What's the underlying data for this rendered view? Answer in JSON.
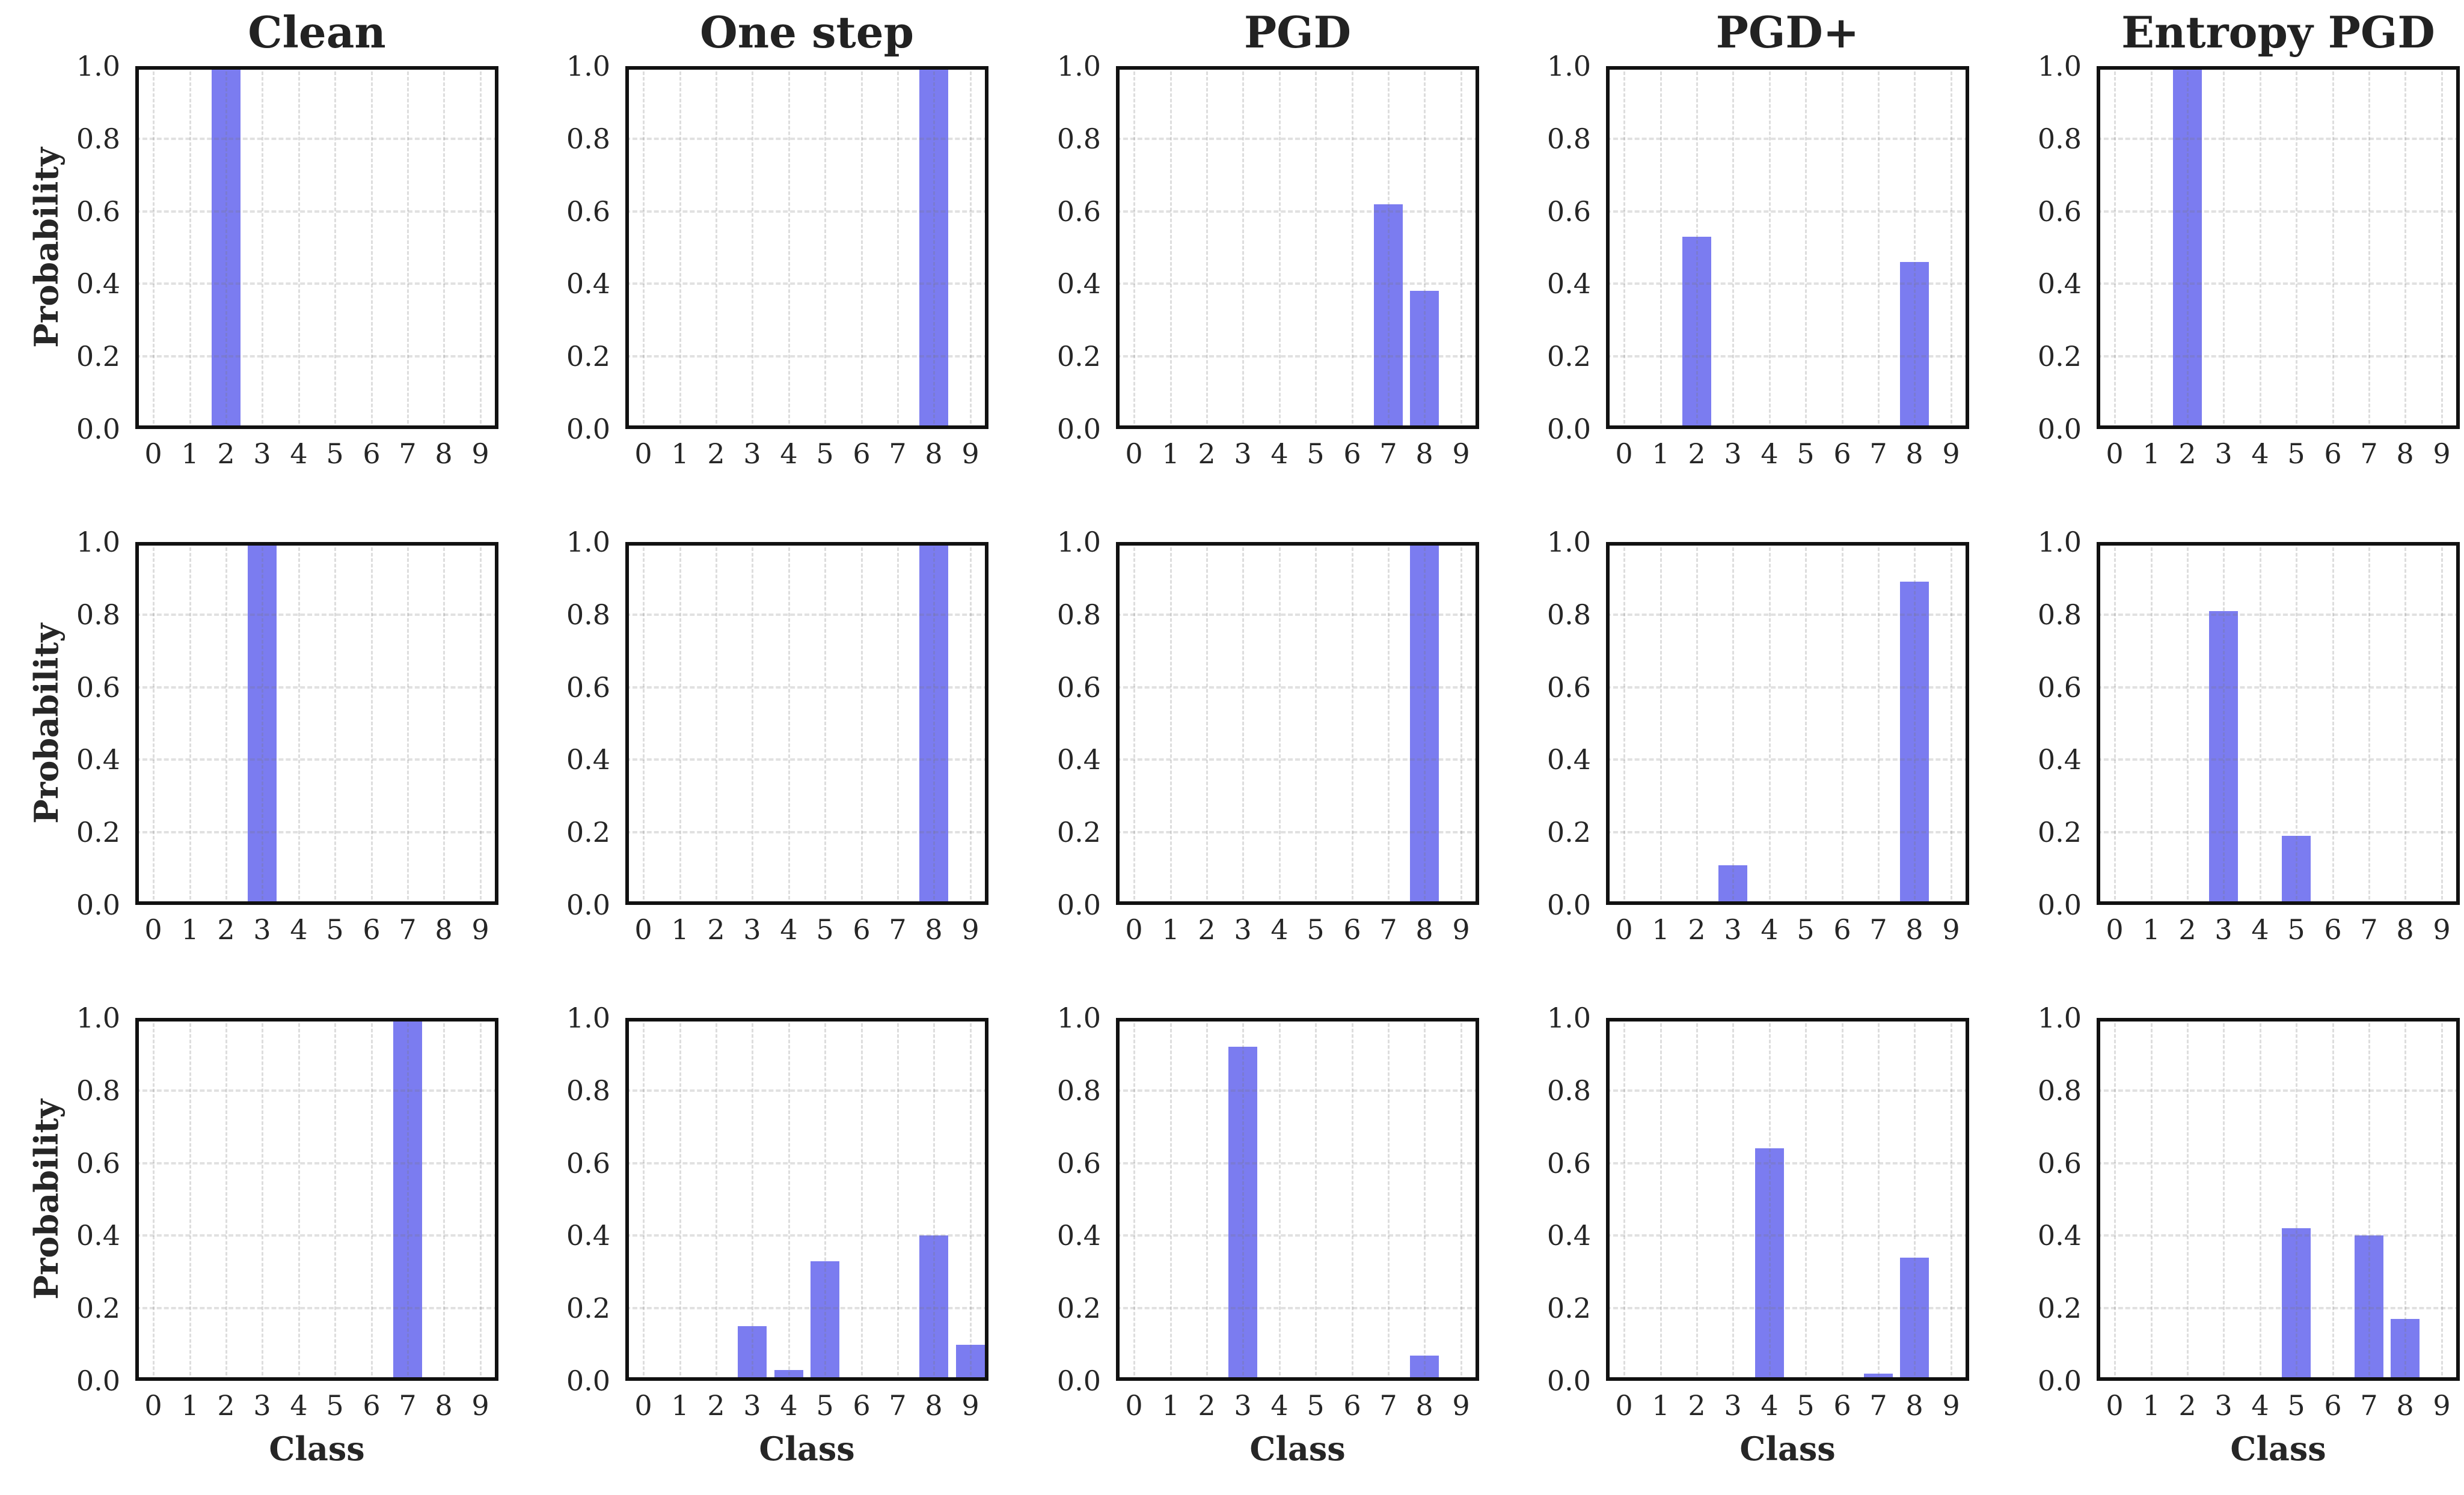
{
  "figure": {
    "background_color": "#ffffff",
    "bar_color": "#7b7cf0",
    "spine_color": "#111111",
    "grid_color": "#dddddd",
    "text_color": "#262626",
    "ylabel": "Probability",
    "xlabel": "Class"
  },
  "chart_data": {
    "type": "bar",
    "layout": "3 rows x 5 columns of subplots, shared style",
    "title": "",
    "column_titles": [
      "Clean",
      "One step",
      "PGD",
      "PGD+",
      "Entropy PGD"
    ],
    "xlabel": "Class",
    "ylabel": "Probability",
    "categories": [
      "0",
      "1",
      "2",
      "3",
      "4",
      "5",
      "6",
      "7",
      "8",
      "9"
    ],
    "ytick_labels": [
      "0.0",
      "0.2",
      "0.4",
      "0.6",
      "0.8",
      "1.0"
    ],
    "ylim": [
      0.0,
      1.0
    ],
    "grid": true,
    "legend": false,
    "rows": [
      {
        "subplots": [
          {
            "column": "Clean",
            "values": [
              0,
              0,
              1.0,
              0,
              0,
              0,
              0,
              0,
              0,
              0
            ]
          },
          {
            "column": "One step",
            "values": [
              0,
              0,
              0,
              0,
              0,
              0,
              0,
              0.01,
              0.99,
              0
            ]
          },
          {
            "column": "PGD",
            "values": [
              0,
              0,
              0,
              0,
              0,
              0,
              0,
              0.62,
              0.38,
              0
            ]
          },
          {
            "column": "PGD+",
            "values": [
              0,
              0,
              0.53,
              0,
              0,
              0,
              0,
              0,
              0.46,
              0
            ]
          },
          {
            "column": "Entropy PGD",
            "values": [
              0,
              0,
              1.0,
              0,
              0,
              0,
              0,
              0,
              0,
              0
            ]
          }
        ]
      },
      {
        "subplots": [
          {
            "column": "Clean",
            "values": [
              0,
              0,
              0,
              1.0,
              0,
              0,
              0,
              0,
              0,
              0
            ]
          },
          {
            "column": "One step",
            "values": [
              0,
              0,
              0,
              0,
              0,
              0,
              0,
              0,
              1.0,
              0
            ]
          },
          {
            "column": "PGD",
            "values": [
              0,
              0,
              0,
              0,
              0,
              0,
              0,
              0,
              1.0,
              0
            ]
          },
          {
            "column": "PGD+",
            "values": [
              0,
              0,
              0,
              0.11,
              0,
              0,
              0,
              0,
              0.89,
              0
            ]
          },
          {
            "column": "Entropy PGD",
            "values": [
              0,
              0,
              0,
              0.81,
              0,
              0.19,
              0,
              0,
              0,
              0
            ]
          }
        ]
      },
      {
        "subplots": [
          {
            "column": "Clean",
            "values": [
              0,
              0,
              0,
              0,
              0,
              0,
              0,
              1.0,
              0,
              0
            ]
          },
          {
            "column": "One step",
            "values": [
              0,
              0,
              0,
              0.15,
              0.03,
              0.33,
              0,
              0,
              0.4,
              0.1
            ]
          },
          {
            "column": "PGD",
            "values": [
              0,
              0,
              0,
              0.92,
              0,
              0,
              0,
              0,
              0.07,
              0
            ]
          },
          {
            "column": "PGD+",
            "values": [
              0,
              0,
              0,
              0,
              0.64,
              0,
              0,
              0.02,
              0.34,
              0
            ]
          },
          {
            "column": "Entropy PGD",
            "values": [
              0,
              0,
              0,
              0,
              0,
              0.42,
              0,
              0.4,
              0.17,
              0
            ]
          }
        ]
      }
    ]
  }
}
